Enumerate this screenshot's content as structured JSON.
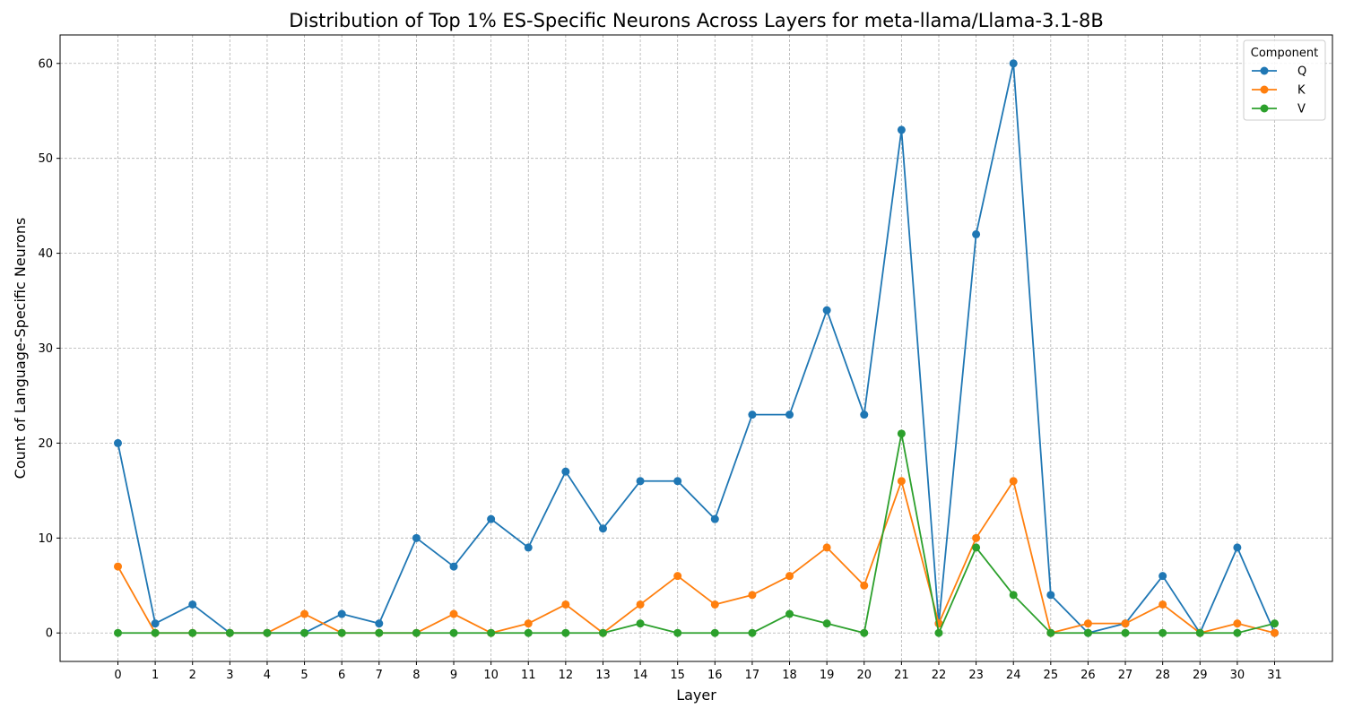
{
  "chart_data": {
    "type": "line",
    "title": "Distribution of Top 1% ES-Specific Neurons Across Layers for meta-llama/Llama-3.1-8B",
    "xlabel": "Layer",
    "ylabel": "Count of Language-Specific Neurons",
    "x": [
      0,
      1,
      2,
      3,
      4,
      5,
      6,
      7,
      8,
      9,
      10,
      11,
      12,
      13,
      14,
      15,
      16,
      17,
      18,
      19,
      20,
      21,
      22,
      23,
      24,
      25,
      26,
      27,
      28,
      29,
      30,
      31
    ],
    "x_ticks": [
      "0",
      "1",
      "2",
      "3",
      "4",
      "5",
      "6",
      "7",
      "8",
      "9",
      "10",
      "11",
      "12",
      "13",
      "14",
      "15",
      "16",
      "17",
      "18",
      "19",
      "20",
      "21",
      "22",
      "23",
      "24",
      "25",
      "26",
      "27",
      "28",
      "29",
      "30",
      "31"
    ],
    "xlim": [
      -1.55,
      32.55
    ],
    "ylim": [
      -3,
      63
    ],
    "y_ticks": [
      0,
      10,
      20,
      30,
      40,
      50,
      60
    ],
    "y_tick_labels": [
      "0",
      "10",
      "20",
      "30",
      "40",
      "50",
      "60"
    ],
    "grid": true,
    "legend": {
      "title": "Component",
      "position": "top-right"
    },
    "series": [
      {
        "name": "Q",
        "color": "#1f77b4",
        "values": [
          20,
          1,
          3,
          0,
          0,
          0,
          2,
          1,
          10,
          7,
          12,
          9,
          17,
          11,
          16,
          16,
          12,
          23,
          23,
          34,
          23,
          53,
          1,
          42,
          60,
          4,
          0,
          1,
          6,
          0,
          9,
          0
        ]
      },
      {
        "name": "K",
        "color": "#ff7f0e",
        "values": [
          7,
          0,
          0,
          0,
          0,
          2,
          0,
          0,
          0,
          2,
          0,
          1,
          3,
          0,
          3,
          6,
          3,
          4,
          6,
          9,
          5,
          16,
          1,
          10,
          16,
          0,
          1,
          1,
          3,
          0,
          1,
          0
        ]
      },
      {
        "name": "V",
        "color": "#2ca02c",
        "values": [
          0,
          0,
          0,
          0,
          0,
          0,
          0,
          0,
          0,
          0,
          0,
          0,
          0,
          0,
          1,
          0,
          0,
          0,
          2,
          1,
          0,
          21,
          0,
          9,
          4,
          0,
          0,
          0,
          0,
          0,
          0,
          1
        ]
      }
    ]
  }
}
